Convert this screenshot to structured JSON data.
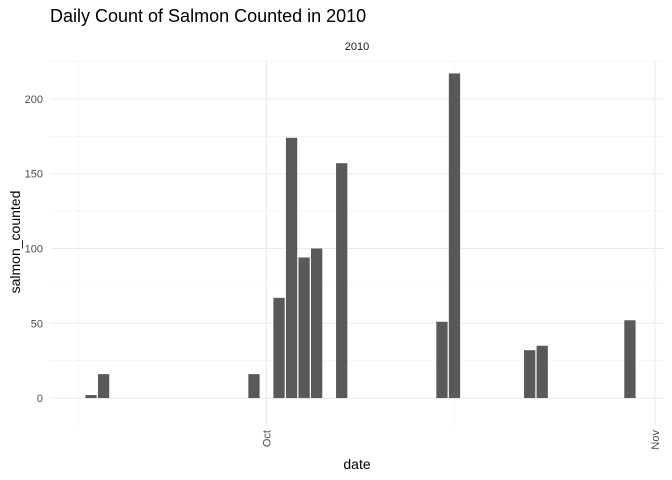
{
  "chart_data": {
    "type": "bar",
    "title": "Daily Count of Salmon Counted in 2010",
    "facet_label": "2010",
    "xlabel": "date",
    "ylabel": "salmon_counted",
    "x_axis": {
      "type": "date",
      "range": [
        "2010-09-15",
        "2010-11-01"
      ],
      "tick_labels": [
        {
          "label": "Oct",
          "date": "2010-10-01"
        },
        {
          "label": "Nov",
          "date": "2010-11-01"
        }
      ],
      "minor_gridlines": [
        "2010-09-16",
        "2010-10-16"
      ],
      "tick_label_rotation": "vertical"
    },
    "ylim": [
      -18,
      226
    ],
    "y_ticks": [
      0,
      50,
      100,
      150,
      200
    ],
    "grid": true,
    "bar_color": "#595959",
    "data": [
      {
        "date": "2010-09-17",
        "value": 2
      },
      {
        "date": "2010-09-18",
        "value": 16
      },
      {
        "date": "2010-09-30",
        "value": 16
      },
      {
        "date": "2010-10-02",
        "value": 67
      },
      {
        "date": "2010-10-03",
        "value": 174
      },
      {
        "date": "2010-10-04",
        "value": 94
      },
      {
        "date": "2010-10-05",
        "value": 100
      },
      {
        "date": "2010-10-07",
        "value": 157
      },
      {
        "date": "2010-10-15",
        "value": 51
      },
      {
        "date": "2010-10-16",
        "value": 217
      },
      {
        "date": "2010-10-22",
        "value": 32
      },
      {
        "date": "2010-10-23",
        "value": 35
      },
      {
        "date": "2010-10-30",
        "value": 52
      }
    ]
  }
}
